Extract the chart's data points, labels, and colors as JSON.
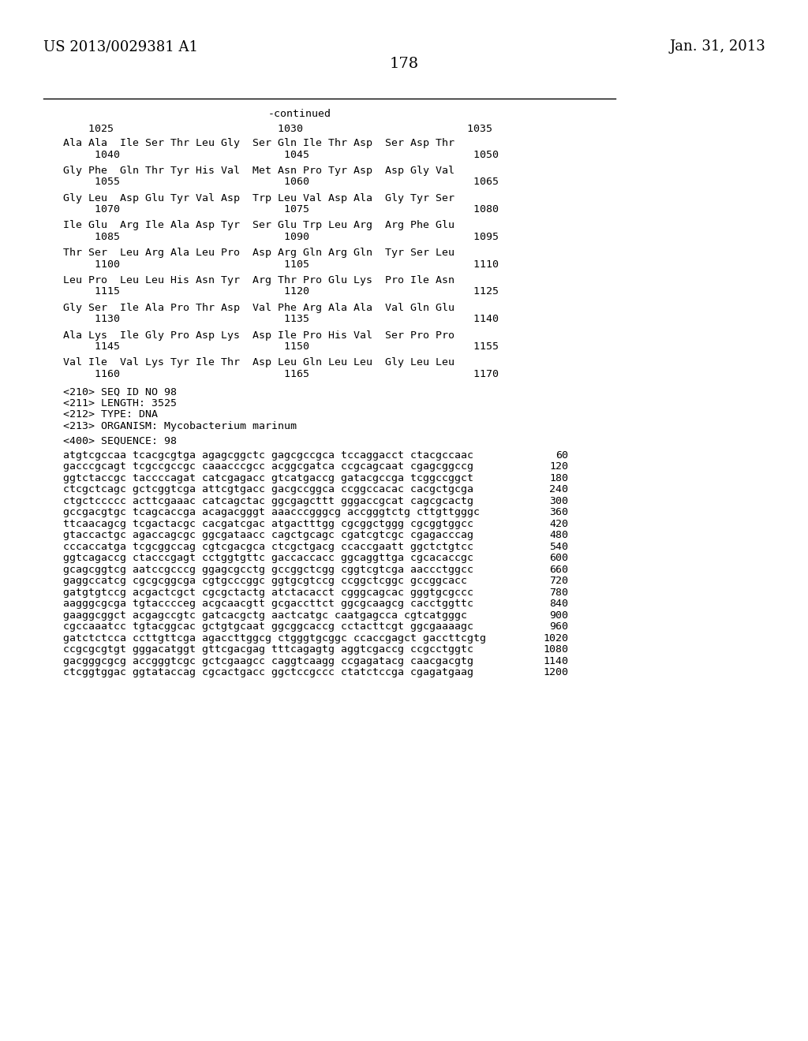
{
  "header_left": "US 2013/0029381 A1",
  "header_right": "Jan. 31, 2013",
  "page_number": "178",
  "continued_label": "-continued",
  "top_rule": true,
  "position_numbers_row": "    1025                          1030                          1035",
  "amino_acid_lines": [
    "Ala Ala  Ile Ser Thr Leu Gly  Ser Gln Ile Thr Asp  Ser Asp Thr",
    "     1040                          1045                          1050",
    "",
    "Gly Phe  Gln Thr Tyr His Val  Met Asn Pro Tyr Asp  Asp Gly Val",
    "     1055                          1060                          1065",
    "",
    "Gly Leu  Asp Glu Tyr Val Asp  Trp Leu Val Asp Ala  Gly Tyr Ser",
    "     1070                          1075                          1080",
    "",
    "Ile Glu  Arg Ile Ala Asp Tyr  Ser Glu Trp Leu Arg  Arg Phe Glu",
    "     1085                          1090                          1095",
    "",
    "Thr Ser  Leu Arg Ala Leu Pro  Asp Arg Gln Arg Gln  Tyr Ser Leu",
    "     1100                          1105                          1110",
    "",
    "Leu Pro  Leu Leu His Asn Tyr  Arg Thr Pro Glu Lys  Pro Ile Asn",
    "     1115                          1120                          1125",
    "",
    "Gly Ser  Ile Ala Pro Thr Asp  Val Phe Arg Ala Ala  Val Gln Glu",
    "     1130                          1135                          1140",
    "",
    "Ala Lys  Ile Gly Pro Asp Lys  Asp Ile Pro His Val  Ser Pro Pro",
    "     1145                          1150                          1155",
    "",
    "Val Ile  Val Lys Tyr Ile Thr  Asp Leu Gln Leu Leu  Gly Leu Leu",
    "     1160                          1165                          1170"
  ],
  "seq_info_lines": [
    "<210> SEQ ID NO 98",
    "<211> LENGTH: 3525",
    "<212> TYPE: DNA",
    "<213> ORGANISM: Mycobacterium marinum"
  ],
  "seq400_label": "<400> SEQUENCE: 98",
  "dna_lines": [
    [
      "atgtcgccaa tcacgcgtga agagcggctc gagcgccgca tccaggacct ctacgccaac",
      "60"
    ],
    [
      "gacccgcagt tcgccgccgc caaacccgcc acggcgatca ccgcagcaat cgagcggccg",
      "120"
    ],
    [
      "ggtctaccgc taccccagat catcgagacc gtcatgaccg gatacgccga tcggccggct",
      "180"
    ],
    [
      "ctcgctcagc gctcggtcga attcgtgacc gacgccggca ccggccacac cacgctgcga",
      "240"
    ],
    [
      "ctgctccccc acttcgaaac catcagctac ggcgagcttt gggaccgcat cagcgcactg",
      "300"
    ],
    [
      "gccgacgtgc tcagcaccga acagacgggt aaacccgggcg accgggtctg cttgttgggc",
      "360"
    ],
    [
      "ttcaacagcg tcgactacgc cacgatcgac atgactttgg cgcggctggg cgcggtggcc",
      "420"
    ],
    [
      "gtaccactgc agaccagcgc ggcgataacc cagctgcagc cgatcgtcgc cgagacccag",
      "480"
    ],
    [
      "cccaccatga tcgcggccag cgtcgacgca ctcgctgacg ccaccgaatt ggctctgtcc",
      "540"
    ],
    [
      "ggtcagaccg ctacccgagt cctggtgttc gaccaccacc ggcaggttga cgcacaccgc",
      "600"
    ],
    [
      "gcagcggtcg aatccgcccg ggagcgcctg gccggctcgg cggtcgtcga aaccctggcc",
      "660"
    ],
    [
      "gaggccatcg cgcgcggcga cgtgcccggc ggtgcgtccg ccggctcggc gccggcacc",
      "720"
    ],
    [
      "gatgtgtccg acgactcgct cgcgctactg atctacacct cgggcagcac gggtgcgccc",
      "780"
    ],
    [
      "aagggcgcga tgtacccceg acgcaacgtt gcgaccttct ggcgcaagcg cacctggttc",
      "840"
    ],
    [
      "gaaggcggct acgagccgtc gatcacgctg aactcatgc caatgagcca cgtcatgggc",
      "900"
    ],
    [
      "cgccaaatcc tgtacggcac gctgtgcaat ggcggcaccg cctacttcgt ggcgaaaagc",
      "960"
    ],
    [
      "gatctctcca ccttgttcga agaccttggcg ctgggtgcggc ccaccgagct gaccttcgtg",
      "1020"
    ],
    [
      "ccgcgcgtgt gggacatggt gttcgacgag tttcagagtg aggtcgaccg ccgcctggtc",
      "1080"
    ],
    [
      "gacgggcgcg accgggtcgc gctcgaagcc caggtcaagg ccgagatacg caacgacgtg",
      "1140"
    ],
    [
      "ctcggtggac ggtataccag cgcactgacc ggctccgccc ctatctccga cgagatgaag",
      "1200"
    ]
  ],
  "bg_color": "#ffffff",
  "text_color": "#000000",
  "font_size_header": 13,
  "font_size_body": 9.5,
  "font_size_page_num": 14
}
